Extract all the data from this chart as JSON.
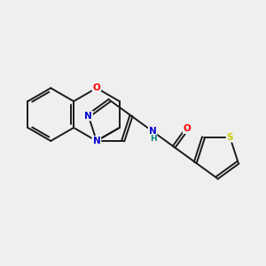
{
  "background_color": "#efefef",
  "bond_color": "#1a1a1a",
  "atom_colors": {
    "O": "#ff0000",
    "N": "#0000cc",
    "S": "#cccc00",
    "NH": "#008080",
    "H": "#555555",
    "C": "#1a1a1a"
  },
  "figsize": [
    3.0,
    3.0
  ],
  "dpi": 100
}
